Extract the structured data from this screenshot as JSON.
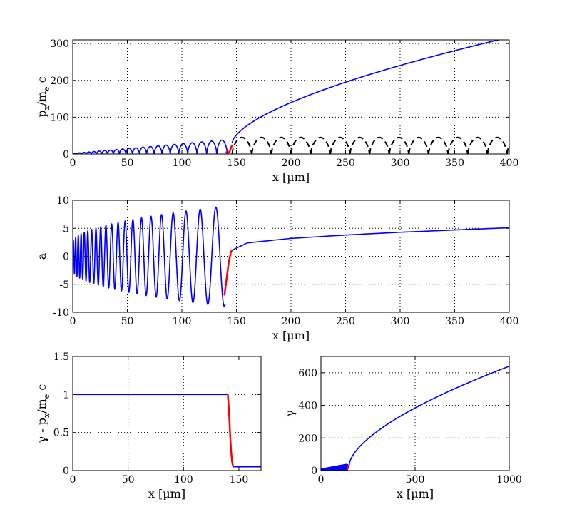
{
  "colors": {
    "main": "#0000ff",
    "transition": "#ff0000",
    "reference": "#000000",
    "grid": "#000000"
  },
  "chart_data": [
    {
      "id": "px",
      "type": "line",
      "xlabel": "x [µm]",
      "ylabel_parts": [
        "p",
        "x",
        "/m",
        "e",
        " c"
      ],
      "xlim": [
        0,
        400
      ],
      "ylim": [
        0,
        310
      ],
      "xticks": [
        0,
        50,
        100,
        150,
        200,
        250,
        300,
        350,
        400
      ],
      "yticks": [
        0,
        100,
        200,
        300
      ],
      "grid": true,
      "series": [
        {
          "kind": "oscillating-arches",
          "color": "main",
          "x_range": [
            0,
            140
          ],
          "peak_start": 2,
          "peak_end": 40,
          "wavelength_start": 4,
          "wavelength_end": 10
        },
        {
          "kind": "transition",
          "color": "transition",
          "x": [
            140,
            142,
            144,
            146
          ],
          "y": [
            5,
            2,
            8,
            25
          ]
        },
        {
          "kind": "sqrt-rise",
          "color": "main",
          "x_range": [
            146,
            390
          ],
          "y_range": [
            30,
            310
          ]
        },
        {
          "kind": "oscillating-arches-dashed",
          "color": "reference",
          "x_range": [
            146,
            400
          ],
          "peak": 45,
          "wavelength": 18
        }
      ]
    },
    {
      "id": "a",
      "type": "line",
      "xlabel": "x [µm]",
      "ylabel": "a",
      "xlim": [
        0,
        400
      ],
      "ylim": [
        -10,
        10
      ],
      "xticks": [
        0,
        50,
        100,
        150,
        200,
        250,
        300,
        350,
        400
      ],
      "yticks": [
        -10,
        -5,
        0,
        5,
        10
      ],
      "grid": true,
      "series": [
        {
          "kind": "oscillation",
          "color": "main",
          "x_range": [
            0,
            140
          ],
          "amp_start": 2.5,
          "amp_end": 9,
          "period_start": 2,
          "period_end": 16
        },
        {
          "kind": "transition",
          "color": "transition",
          "x": [
            139,
            141,
            143,
            145,
            146
          ],
          "y": [
            -7,
            -4,
            -1,
            0.8,
            1.1
          ]
        },
        {
          "kind": "log-rise",
          "color": "main",
          "x": [
            146,
            160,
            200,
            250,
            300,
            350,
            400
          ],
          "y": [
            1.1,
            2.4,
            3.2,
            3.8,
            4.3,
            4.7,
            5.1
          ]
        }
      ]
    },
    {
      "id": "gamma-minus-px",
      "type": "line",
      "xlabel": "x [µm]",
      "ylabel_parts": [
        "γ - p",
        "x",
        "/m",
        "e",
        " c"
      ],
      "xlim": [
        0,
        170
      ],
      "ylim": [
        0,
        1.5
      ],
      "xticks": [
        0,
        50,
        100,
        150
      ],
      "yticks": [
        0,
        0.5,
        1,
        1.5
      ],
      "grid": true,
      "series": [
        {
          "kind": "line",
          "color": "main",
          "x": [
            0,
            140
          ],
          "y": [
            1,
            1
          ]
        },
        {
          "kind": "transition",
          "color": "transition",
          "x": [
            140,
            141,
            142,
            143,
            144,
            145
          ],
          "y": [
            1,
            0.8,
            0.5,
            0.25,
            0.1,
            0.05
          ]
        },
        {
          "kind": "line",
          "color": "main",
          "x": [
            145,
            170
          ],
          "y": [
            0.05,
            0.05
          ]
        }
      ]
    },
    {
      "id": "gamma",
      "type": "line",
      "xlabel": "x [µm]",
      "ylabel": "γ",
      "xlim": [
        0,
        1000
      ],
      "ylim": [
        0,
        700
      ],
      "xticks": [
        0,
        500,
        1000
      ],
      "yticks": [
        0,
        200,
        400,
        600
      ],
      "grid": true,
      "series": [
        {
          "kind": "oscillating-band",
          "color": "main",
          "x_range": [
            0,
            140
          ],
          "peak_start": 10,
          "peak_end": 40
        },
        {
          "kind": "transition",
          "color": "transition",
          "x": [
            138,
            142,
            146,
            150
          ],
          "y": [
            5,
            12,
            22,
            35
          ]
        },
        {
          "kind": "sqrt-rise",
          "color": "main",
          "x_range": [
            150,
            1000
          ],
          "y_range": [
            35,
            640
          ]
        }
      ]
    }
  ]
}
